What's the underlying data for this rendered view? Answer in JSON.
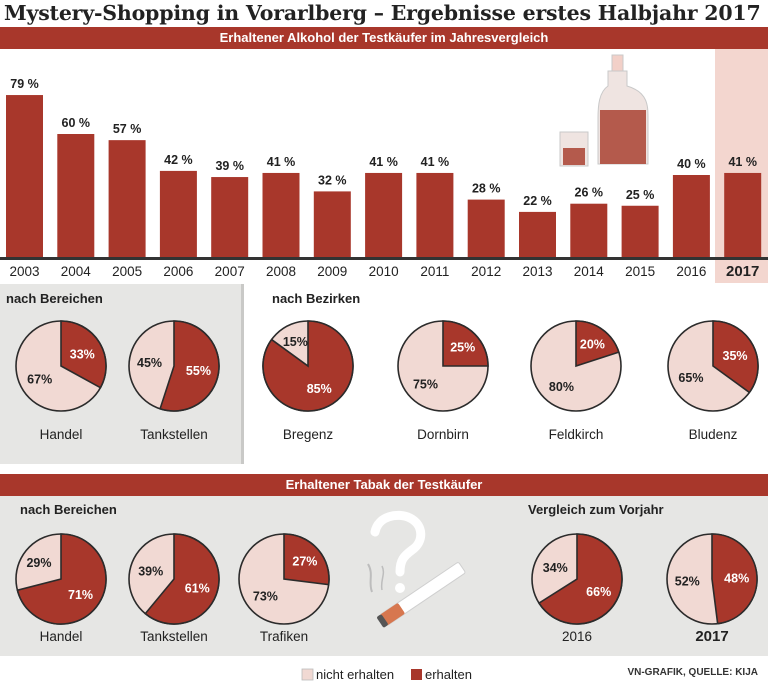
{
  "title": "Mystery-Shopping in Vorarlberg – Ergebnisse erstes Halbjahr 2017",
  "source": "VN-GRAFIK, QUELLE: KIJA",
  "colors": {
    "dark": "#a8372b",
    "light": "#f1d9d3",
    "band": "#a8372b",
    "highlight": "#f3d6cf",
    "grey_panel": "#e6e6e4"
  },
  "legend": {
    "not_received": "nicht erhalten",
    "received": "erhalten"
  },
  "chart_data": [
    {
      "type": "bar",
      "title": "Erhaltener Alkohol der Testkäufer im Jahresvergleich",
      "categories": [
        "2003",
        "2004",
        "2005",
        "2006",
        "2007",
        "2008",
        "2009",
        "2010",
        "2011",
        "2012",
        "2013",
        "2014",
        "2015",
        "2016",
        "2017"
      ],
      "values": [
        79,
        60,
        57,
        42,
        39,
        41,
        32,
        41,
        41,
        28,
        22,
        26,
        25,
        40,
        41
      ],
      "labels": [
        "79 %",
        "60 %",
        "57 %",
        "42 %",
        "39 %",
        "41 %",
        "32 %",
        "41 %",
        "41 %",
        "28 %",
        "22 %",
        "26 %",
        "25 %",
        "40 %",
        "41 %"
      ],
      "highlight": "2017",
      "ylim": [
        0,
        80
      ]
    },
    {
      "type": "pie",
      "section_title": "nach Bereichen",
      "group": "alcohol",
      "pies": [
        {
          "name": "Handel",
          "erhalten": 33,
          "nicht_erhalten": 67,
          "label_erhalten": "33%",
          "label_nicht": "67%"
        },
        {
          "name": "Tankstellen",
          "erhalten": 55,
          "nicht_erhalten": 45,
          "label_erhalten": "55%",
          "label_nicht": "45%"
        }
      ]
    },
    {
      "type": "pie",
      "section_title": "nach Bezirken",
      "group": "alcohol",
      "pies": [
        {
          "name": "Bregenz",
          "erhalten": 85,
          "nicht_erhalten": 15,
          "label_erhalten": "85%",
          "label_nicht": "15%"
        },
        {
          "name": "Dornbirn",
          "erhalten": 25,
          "nicht_erhalten": 75,
          "label_erhalten": "25%",
          "label_nicht": "75%"
        },
        {
          "name": "Feldkirch",
          "erhalten": 20,
          "nicht_erhalten": 80,
          "label_erhalten": "20%",
          "label_nicht": "80%"
        },
        {
          "name": "Bludenz",
          "erhalten": 35,
          "nicht_erhalten": 65,
          "label_erhalten": "35%",
          "label_nicht": "65%"
        }
      ]
    },
    {
      "type": "pie",
      "title": "Erhaltener Tabak der Testkäufer",
      "section_title": "nach Bereichen",
      "group": "tobacco",
      "pies": [
        {
          "name": "Handel",
          "erhalten": 71,
          "nicht_erhalten": 29,
          "label_erhalten": "71%",
          "label_nicht": "29%"
        },
        {
          "name": "Tankstellen",
          "erhalten": 61,
          "nicht_erhalten": 39,
          "label_erhalten": "61%",
          "label_nicht": "39%"
        },
        {
          "name": "Trafiken",
          "erhalten": 27,
          "nicht_erhalten": 73,
          "label_erhalten": "27%",
          "label_nicht": "73%"
        }
      ]
    },
    {
      "type": "pie",
      "section_title": "Vergleich zum Vorjahr",
      "group": "tobacco",
      "pies": [
        {
          "name": "2016",
          "erhalten": 66,
          "nicht_erhalten": 34,
          "label_erhalten": "66%",
          "label_nicht": "34%"
        },
        {
          "name": "2017",
          "erhalten": 48,
          "nicht_erhalten": 52,
          "label_erhalten": "48%",
          "label_nicht": "52%"
        }
      ]
    }
  ]
}
